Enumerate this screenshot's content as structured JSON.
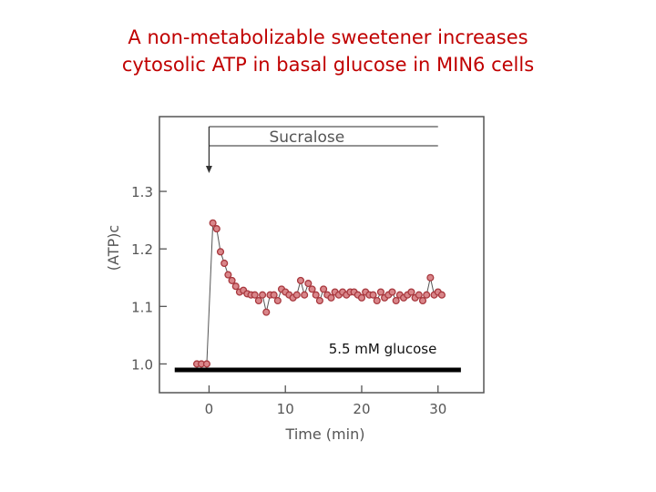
{
  "slide": {
    "title_line1": "A non-metabolizable sweetener increases",
    "title_line2": "cytosolic ATP in basal glucose in MIN6 cells"
  },
  "chart_data": {
    "type": "line",
    "title": "",
    "xlabel": "Time (min)",
    "ylabel": "(ATP)c",
    "xlim": [
      -6.5,
      36
    ],
    "ylim": [
      0.95,
      1.43
    ],
    "xticks": [
      0,
      10,
      20,
      30
    ],
    "yticks": [
      1.0,
      1.1,
      1.2,
      1.3
    ],
    "ytick_labels": [
      "1.0",
      "1.1",
      "1.2",
      "1.3"
    ],
    "grid": false,
    "colors": {
      "marker_fill": "#d9868a",
      "marker_edge": "#a8383e",
      "line": "#555555",
      "bar": "#000000",
      "frame": "#555555"
    },
    "series": [
      {
        "x": [
          -1.6,
          -1.0,
          -0.3,
          0.5,
          1.0,
          1.5,
          2.0,
          2.5,
          3.0,
          3.5,
          4.0,
          4.5,
          5.0,
          5.5,
          6.0,
          6.5,
          7.0,
          7.5,
          8.0,
          8.5,
          9.0,
          9.5,
          10.0,
          10.5,
          11.0,
          11.5,
          12.0,
          12.5,
          13.0,
          13.5,
          14.0,
          14.5,
          15.0,
          15.5,
          16.0,
          16.5,
          17.0,
          17.5,
          18.0,
          18.5,
          19.0,
          19.5,
          20.0,
          20.5,
          21.0,
          21.5,
          22.0,
          22.5,
          23.0,
          23.5,
          24.0,
          24.5,
          25.0,
          25.5,
          26.0,
          26.5,
          27.0,
          27.5,
          28.0,
          28.5,
          29.0,
          29.5,
          30.0,
          30.5
        ],
        "y": [
          1.0,
          1.0,
          1.0,
          1.245,
          1.235,
          1.195,
          1.175,
          1.155,
          1.145,
          1.135,
          1.125,
          1.128,
          1.122,
          1.12,
          1.12,
          1.11,
          1.12,
          1.09,
          1.12,
          1.12,
          1.11,
          1.13,
          1.125,
          1.12,
          1.115,
          1.12,
          1.145,
          1.12,
          1.14,
          1.13,
          1.12,
          1.11,
          1.13,
          1.12,
          1.115,
          1.125,
          1.12,
          1.125,
          1.12,
          1.125,
          1.125,
          1.12,
          1.115,
          1.125,
          1.12,
          1.12,
          1.11,
          1.125,
          1.115,
          1.12,
          1.125,
          1.11,
          1.12,
          1.115,
          1.12,
          1.125,
          1.115,
          1.12,
          1.11,
          1.12,
          1.15,
          1.12,
          1.125,
          1.12
        ]
      }
    ],
    "annotations": {
      "sucralose_label": "Sucralose",
      "sucralose_start_x": 0,
      "sucralose_end_x": 30,
      "glucose_label": "5.5 mM glucose",
      "glucose_bar_from_x": -4.5,
      "glucose_bar_to_x": 33
    }
  }
}
